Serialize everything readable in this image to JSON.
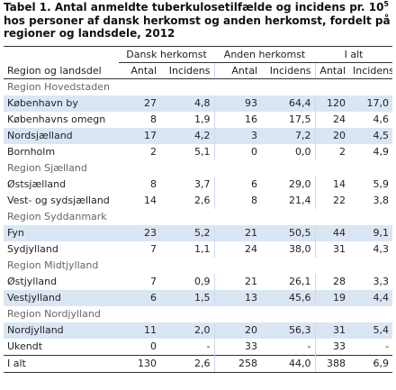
{
  "table": {
    "caption_main": "Tabel 1. Antal anmeldte tuberkulosetilfælde og incidens pr. 10",
    "caption_sup": "5",
    "caption_rest": " hos personer af dansk herkomst og anden herkomst, fordelt på regioner og landsdele, 2012",
    "groups": [
      "Dansk herkomst",
      "Anden herkomst",
      "I alt"
    ],
    "columns": [
      "Region og landsdel",
      "Antal",
      "Incidens",
      "Antal",
      "Incidens",
      "Antal",
      "Incidens"
    ],
    "regions": [
      {
        "name": "Region Hovedstaden",
        "rows": [
          {
            "label": "København by",
            "values": [
              "27",
              "4,8",
              "93",
              "64,4",
              "120",
              "17,0"
            ]
          },
          {
            "label": "Københavns omegn",
            "values": [
              "8",
              "1,9",
              "16",
              "17,5",
              "24",
              "4,6"
            ]
          },
          {
            "label": "Nordsjælland",
            "values": [
              "17",
              "4,2",
              "3",
              "7,2",
              "20",
              "4,5"
            ]
          },
          {
            "label": "Bornholm",
            "values": [
              "2",
              "5,1",
              "0",
              "0,0",
              "2",
              "4,9"
            ]
          }
        ]
      },
      {
        "name": "Region Sjælland",
        "rows": [
          {
            "label": "Østsjælland",
            "values": [
              "8",
              "3,7",
              "6",
              "29,0",
              "14",
              "5,9"
            ]
          },
          {
            "label": "Vest- og sydsjælland",
            "values": [
              "14",
              "2,6",
              "8",
              "21,4",
              "22",
              "3,8"
            ]
          }
        ]
      },
      {
        "name": "Region Syddanmark",
        "rows": [
          {
            "label": "Fyn",
            "values": [
              "23",
              "5,2",
              "21",
              "50,5",
              "44",
              "9,1"
            ]
          },
          {
            "label": "Sydjylland",
            "values": [
              "7",
              "1,1",
              "24",
              "38,0",
              "31",
              "4,3"
            ]
          }
        ]
      },
      {
        "name": "Region Midtjylland",
        "rows": [
          {
            "label": "Østjylland",
            "values": [
              "7",
              "0,9",
              "21",
              "26,1",
              "28",
              "3,3"
            ]
          },
          {
            "label": "Vestjylland",
            "values": [
              "6",
              "1,5",
              "13",
              "45,6",
              "19",
              "4,4"
            ]
          }
        ]
      },
      {
        "name": "Region Nordjylland",
        "rows": [
          {
            "label": "Nordjylland",
            "values": [
              "11",
              "2,0",
              "20",
              "56,3",
              "31",
              "5,4"
            ]
          }
        ]
      }
    ],
    "unknown": {
      "label": "Ukendt",
      "values": [
        "0",
        "-",
        "33",
        "-",
        "33",
        "-"
      ]
    },
    "total": {
      "label": "I alt",
      "values": [
        "130",
        "2,6",
        "258",
        "44,0",
        "388",
        "6,9"
      ]
    }
  }
}
